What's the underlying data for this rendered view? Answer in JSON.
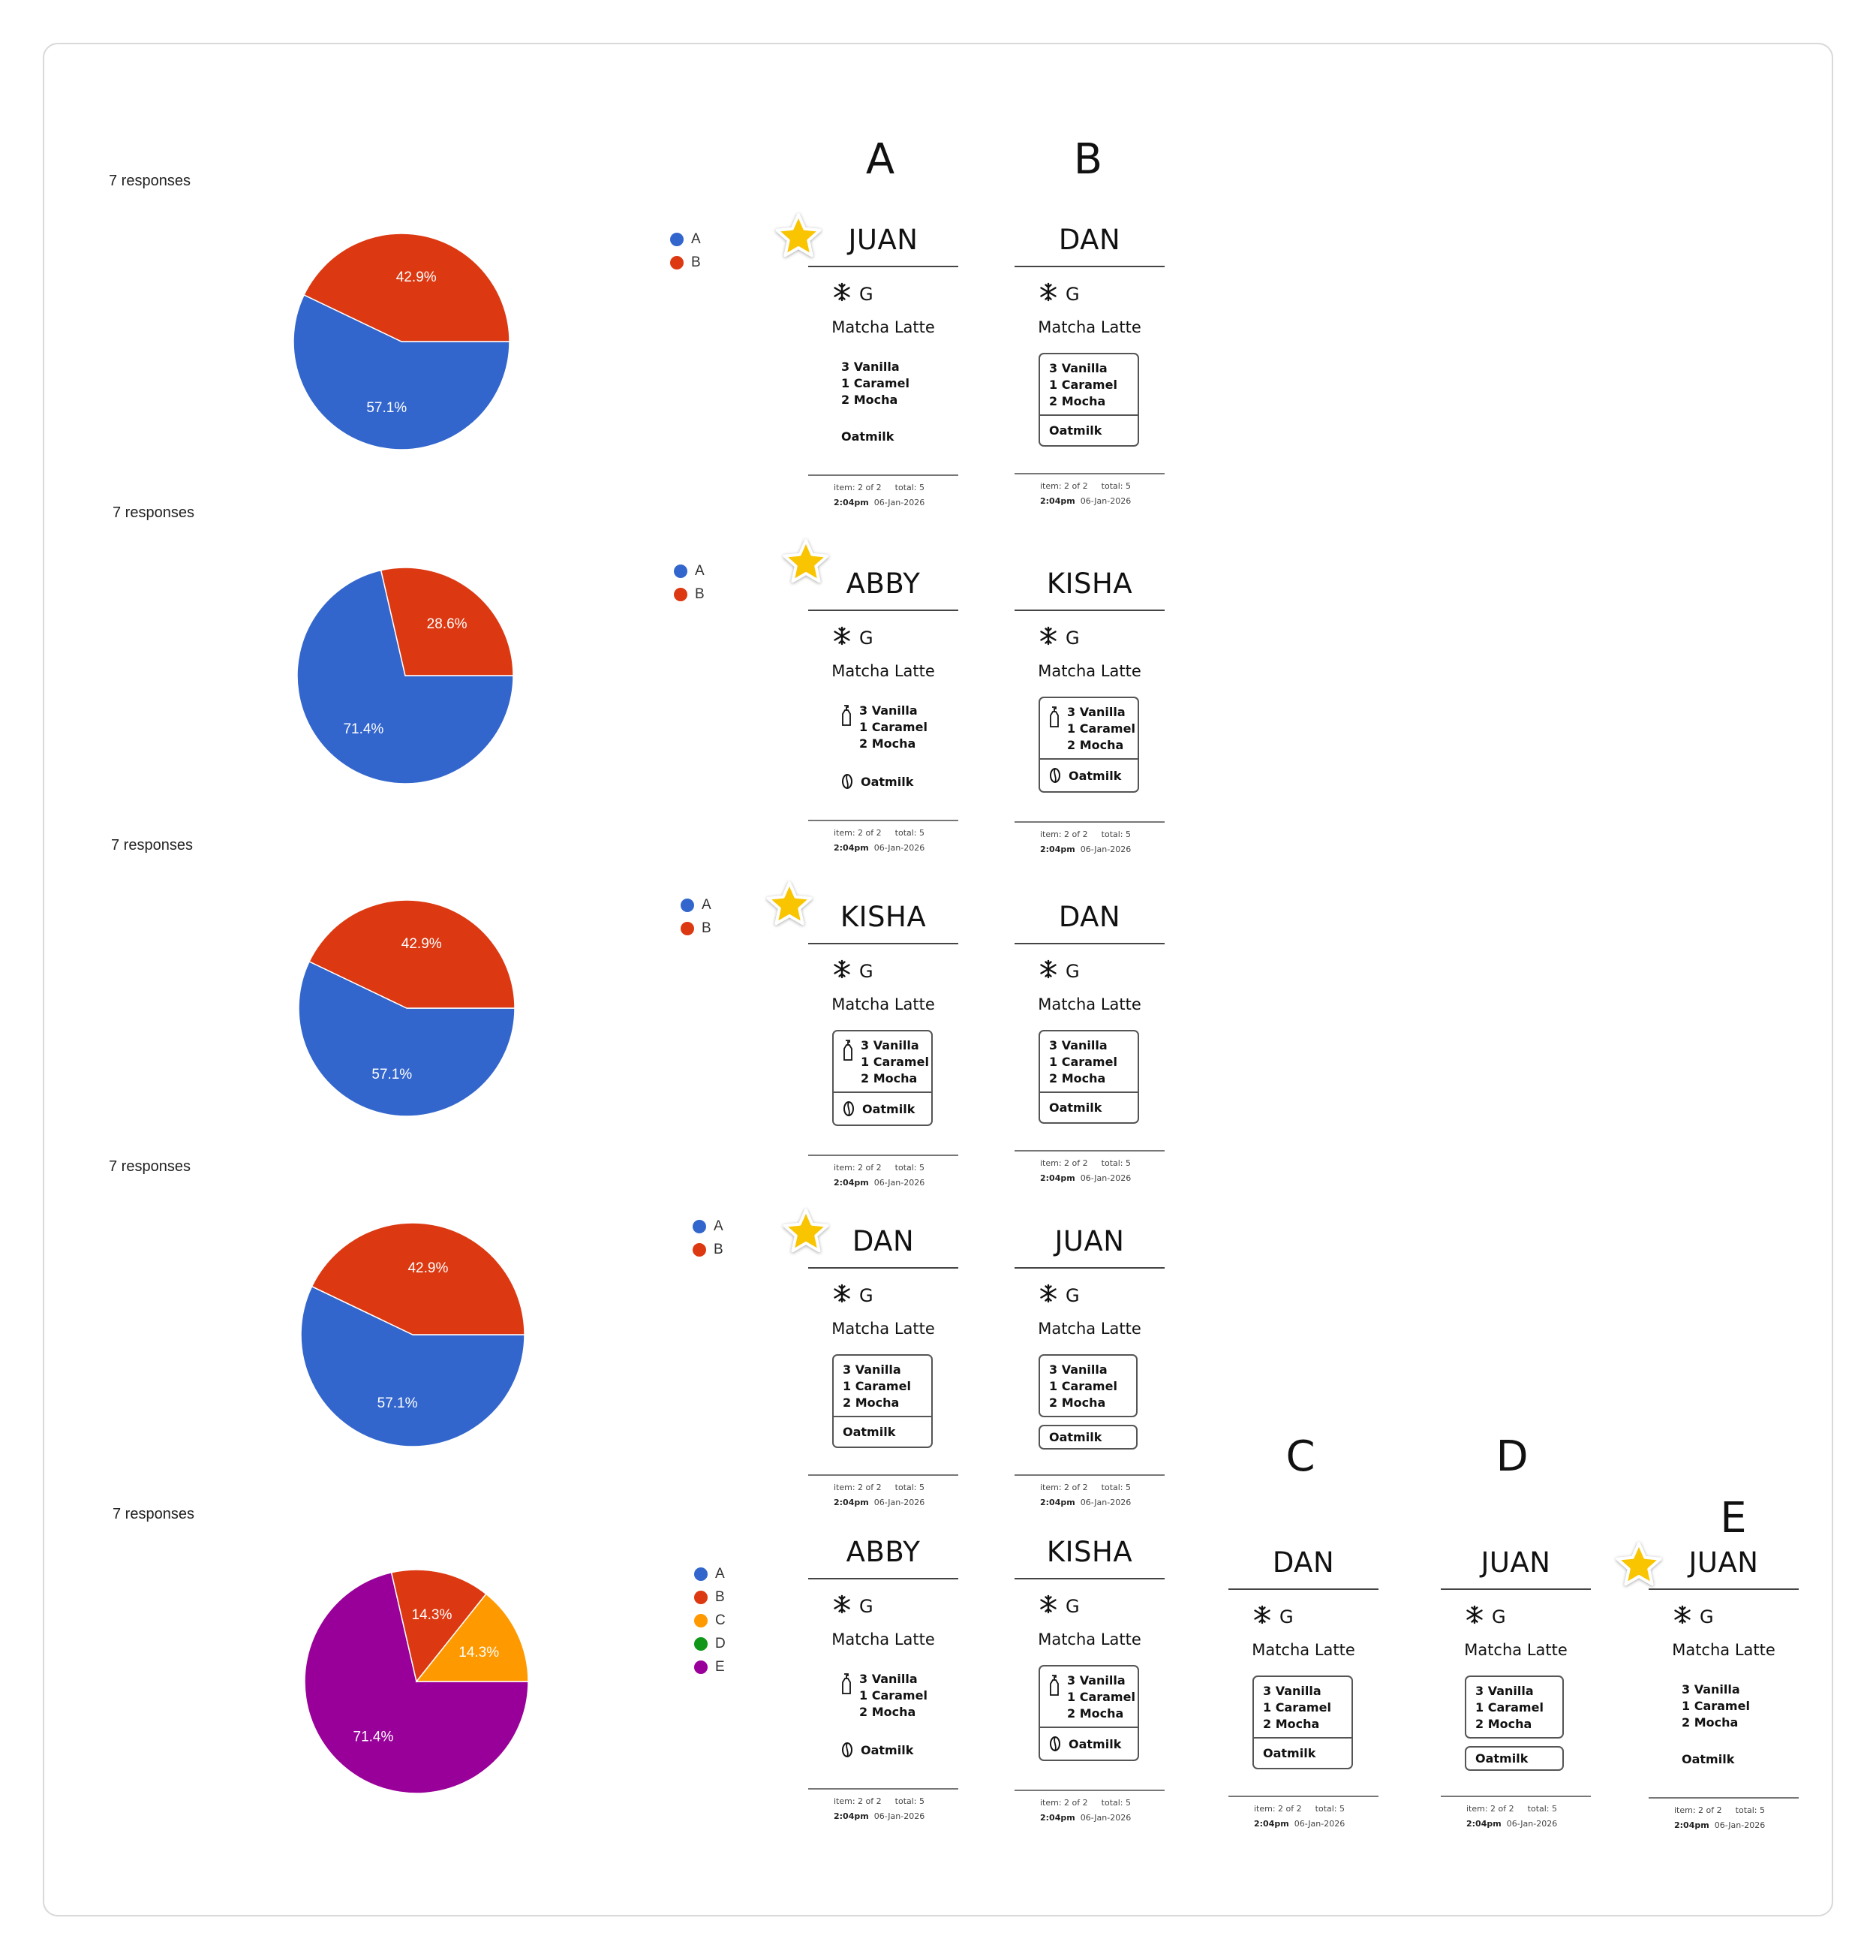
{
  "column_headers": [
    "A",
    "B",
    "C",
    "D",
    "E"
  ],
  "chart_data": [
    {
      "type": "pie",
      "responses": "7 responses",
      "legend": [
        "A",
        "B"
      ],
      "slices": [
        {
          "label": "A",
          "value": 57.1,
          "text": "57.1%",
          "color": "#3366cc"
        },
        {
          "label": "B",
          "value": 42.9,
          "text": "42.9%",
          "color": "#dc3912"
        }
      ]
    },
    {
      "type": "pie",
      "responses": "7 responses",
      "legend": [
        "A",
        "B"
      ],
      "slices": [
        {
          "label": "A",
          "value": 71.4,
          "text": "71.4%",
          "color": "#3366cc"
        },
        {
          "label": "B",
          "value": 28.6,
          "text": "28.6%",
          "color": "#dc3912"
        }
      ]
    },
    {
      "type": "pie",
      "responses": "7 responses",
      "legend": [
        "A",
        "B"
      ],
      "slices": [
        {
          "label": "A",
          "value": 57.1,
          "text": "57.1%",
          "color": "#3366cc"
        },
        {
          "label": "B",
          "value": 42.9,
          "text": "42.9%",
          "color": "#dc3912"
        }
      ]
    },
    {
      "type": "pie",
      "responses": "7 responses",
      "legend": [
        "A",
        "B"
      ],
      "slices": [
        {
          "label": "A",
          "value": 57.1,
          "text": "57.1%",
          "color": "#3366cc"
        },
        {
          "label": "B",
          "value": 42.9,
          "text": "42.9%",
          "color": "#dc3912"
        }
      ]
    },
    {
      "type": "pie",
      "responses": "7 responses",
      "legend": [
        "A",
        "B",
        "C",
        "D",
        "E"
      ],
      "legend_colors": [
        "#3366cc",
        "#dc3912",
        "#ff9900",
        "#109618",
        "#990099"
      ],
      "slices": [
        {
          "label": "E",
          "value": 71.4,
          "text": "71.4%",
          "color": "#990099"
        },
        {
          "label": "B",
          "value": 14.3,
          "text": "14.3%",
          "color": "#dc3912"
        },
        {
          "label": "C",
          "value": 14.3,
          "text": "14.3%",
          "color": "#ff9900"
        }
      ]
    }
  ],
  "ticket_common": {
    "temp": "G",
    "drink": "Matcha Latte",
    "syrups": [
      "3 Vanilla",
      "1 Caramel",
      "2 Mocha"
    ],
    "milk": "Oatmilk",
    "item": "item: 2 of 2",
    "total": "total: 5",
    "time": "2:04pm",
    "date": "06-Jan-2026"
  },
  "tickets": [
    {
      "name": "JUAN",
      "option": "A",
      "row": 1,
      "starred": true
    },
    {
      "name": "DAN",
      "option": "B",
      "row": 1,
      "starred": false
    },
    {
      "name": "ABBY",
      "option": "A",
      "row": 2,
      "starred": true
    },
    {
      "name": "KISHA",
      "option": "B",
      "row": 2,
      "starred": false
    },
    {
      "name": "KISHA",
      "option": "A",
      "row": 3,
      "starred": true
    },
    {
      "name": "DAN",
      "option": "B",
      "row": 3,
      "starred": false
    },
    {
      "name": "DAN",
      "option": "A",
      "row": 4,
      "starred": true
    },
    {
      "name": "JUAN",
      "option": "B",
      "row": 4,
      "starred": false
    },
    {
      "name": "ABBY",
      "option": "A",
      "row": 5,
      "starred": false
    },
    {
      "name": "KISHA",
      "option": "B",
      "row": 5,
      "starred": false
    },
    {
      "name": "DAN",
      "option": "C",
      "row": 5,
      "starred": false
    },
    {
      "name": "JUAN",
      "option": "D",
      "row": 5,
      "starred": false
    },
    {
      "name": "JUAN",
      "option": "E",
      "row": 5,
      "starred": true
    }
  ],
  "colors": {
    "star": "#f9c400",
    "star_outline": "#ffffff"
  }
}
